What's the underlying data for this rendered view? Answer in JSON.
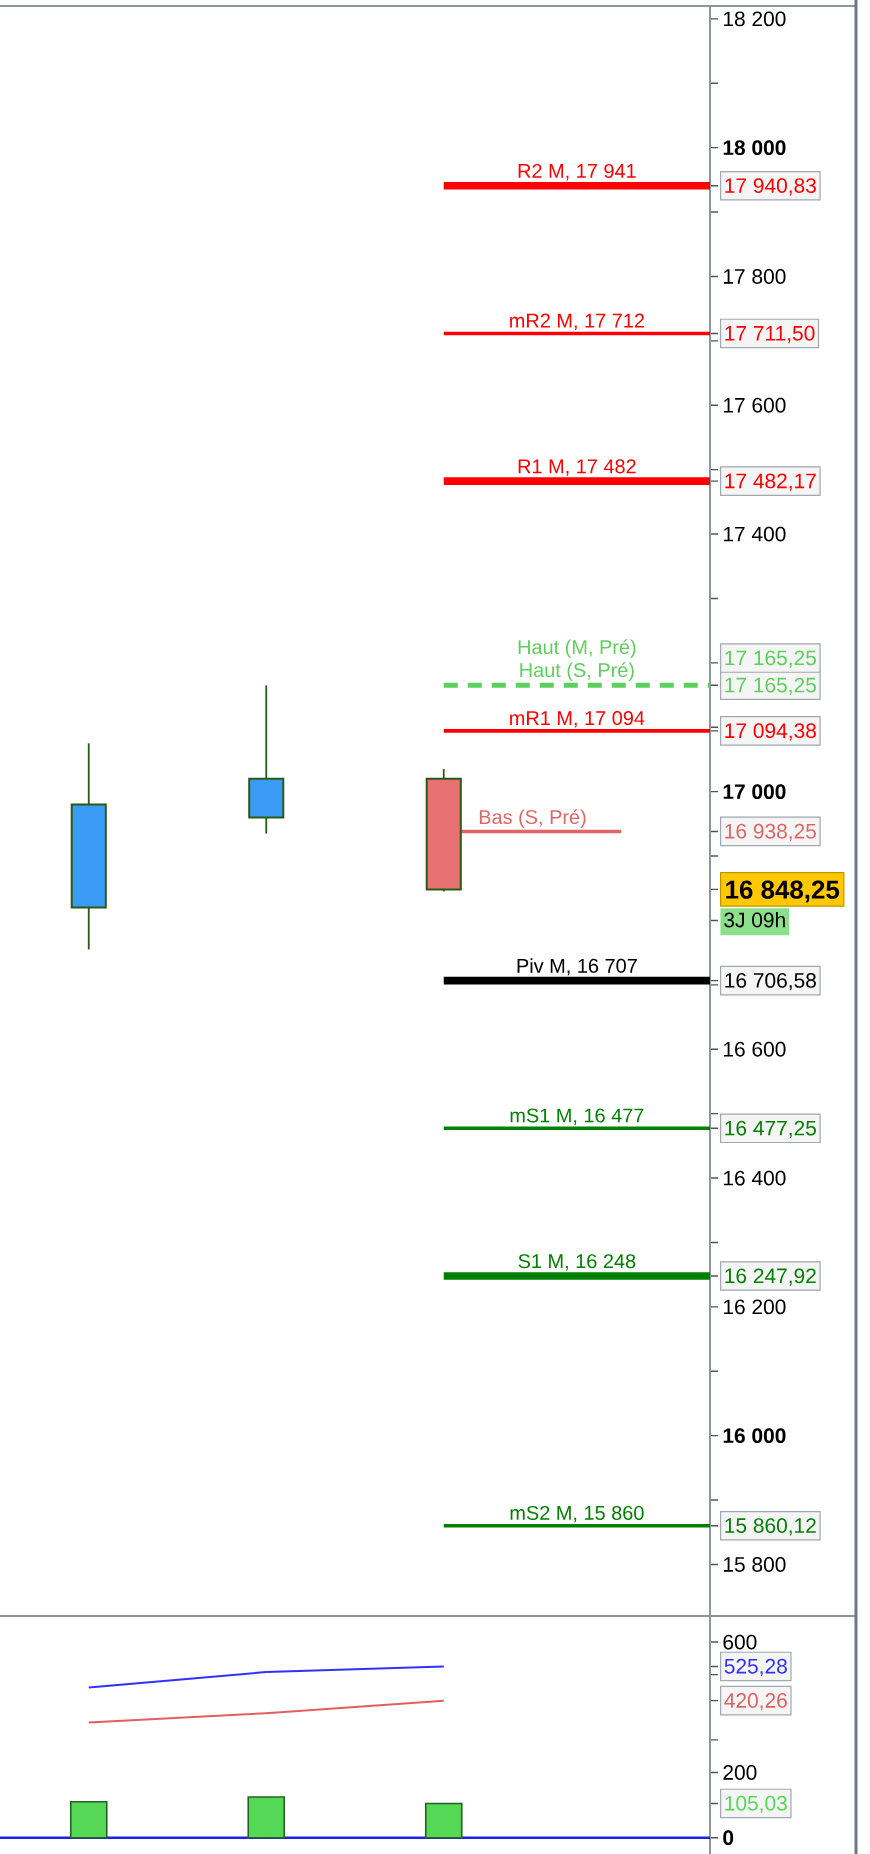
{
  "chart_data": [
    {
      "type": "candlestick",
      "categories": [
        null,
        null,
        null,
        null
      ],
      "ohlc": [
        [
          16820,
          17075,
          16755,
          16980
        ],
        [
          16960,
          17165,
          16935,
          17020
        ],
        [
          17020,
          17035,
          16845,
          16848.25
        ],
        null
      ],
      "colors": [
        "#3a9cf4",
        "#3a9cf4",
        "#e87272",
        null
      ],
      "ylim": [
        15720,
        18220
      ],
      "yticks": [
        {
          "value": 15800,
          "label": "15 800"
        },
        {
          "value": 15860.12,
          "label": "15 860,12"
        },
        {
          "value": 15900,
          "label": null
        },
        {
          "value": 16000,
          "label": "16 000"
        },
        {
          "value": 16100,
          "label": null
        },
        {
          "value": 16200,
          "label": "16 200"
        },
        {
          "value": 16247.92,
          "label": "16 247,92"
        },
        {
          "value": 16300,
          "label": null
        },
        {
          "value": 16400,
          "label": "16 400"
        },
        {
          "value": 16477.25,
          "label": "16 477,25"
        },
        {
          "value": 16500,
          "label": null
        },
        {
          "value": 16600,
          "label": "16 600"
        },
        {
          "value": 16700,
          "label": null
        },
        {
          "value": 16706.58,
          "label": "16 706,58"
        },
        {
          "value": 16800,
          "label": null
        },
        {
          "value": 16848.25,
          "label": "16 848,25"
        },
        {
          "value": 16900,
          "label": null
        },
        {
          "value": 16938.25,
          "label": "16 938,25"
        },
        {
          "value": 17000,
          "label": "17 000"
        },
        {
          "value": 17094.38,
          "label": "17 094,38"
        },
        {
          "value": 17100,
          "label": null
        },
        {
          "value": 17165.25,
          "label": "17 165,25"
        },
        {
          "value": 17200,
          "label": null
        },
        {
          "value": 17300,
          "label": null
        },
        {
          "value": 17400,
          "label": "17 400"
        },
        {
          "value": 17482.17,
          "label": "17 482,17"
        },
        {
          "value": 17500,
          "label": null
        },
        {
          "value": 17600,
          "label": "17 600"
        },
        {
          "value": 17700,
          "label": null
        },
        {
          "value": 17711.5,
          "label": "17 711,50"
        },
        {
          "value": 17800,
          "label": "17 800"
        },
        {
          "value": 17900,
          "label": null
        },
        {
          "value": 17940.83,
          "label": "17 940,83"
        },
        {
          "value": 18000,
          "label": "18 000"
        },
        {
          "value": 18100,
          "label": null
        },
        {
          "value": 18200,
          "label": "18 200"
        }
      ],
      "ref_lines": [
        {
          "axis": "y",
          "value": 17940.83,
          "label": "R2 M, 17 941",
          "color": "#ff0000"
        },
        {
          "axis": "y",
          "value": 17711.5,
          "label": "mR2 M, 17 712",
          "color": "#ff0000"
        },
        {
          "axis": "y",
          "value": 17482.17,
          "label": "R1 M, 17 482",
          "color": "#ff0000"
        },
        {
          "axis": "y",
          "value": 17165.25,
          "label": "Haut (S, Pré)",
          "color": "#5ccf5c",
          "line_style": "dashed"
        },
        {
          "axis": "y",
          "value": 17094.38,
          "label": "mR1 M, 17 094",
          "color": "#ff0000"
        },
        {
          "axis": "y",
          "value": 16938.25,
          "label": "Bas (S, Pré)",
          "color": "#e06666"
        },
        {
          "axis": "y",
          "value": 16706.58,
          "label": "Piv M, 16 707",
          "color": "#000000"
        },
        {
          "axis": "y",
          "value": 16477.25,
          "label": "mS1 M, 16 477",
          "color": "#008000"
        },
        {
          "axis": "y",
          "value": 16247.92,
          "label": "S1 M, 16 248",
          "color": "#008000"
        },
        {
          "axis": "y",
          "value": 15860.12,
          "label": "mS2 M, 15 860",
          "color": "#008000"
        }
      ],
      "annotations": [
        {
          "text": "Haut (M, Pré)",
          "y": 17165.25
        },
        "17 165,25",
        "3J 09h"
      ],
      "tick_labels": "y"
    },
    {
      "type": "bar",
      "categories": [
        null,
        null,
        null,
        null
      ],
      "series": [
        {
          "type": "bar",
          "color": "#55d855",
          "values": [
            110,
            125,
            105.03,
            null
          ]
        },
        {
          "type": "line",
          "color": "#3030ff",
          "values": [
            461,
            508,
            525.28,
            null
          ]
        },
        {
          "type": "line",
          "color": "#e06060",
          "values": [
            353,
            382,
            420.26,
            null
          ]
        }
      ],
      "ylim": [
        -50,
        680
      ],
      "yticks": [
        0,
        {
          "value": 105.03,
          "label": "105,03"
        },
        200,
        {
          "value": 300,
          "label": null
        },
        {
          "value": 420.26,
          "label": "420,26"
        },
        {
          "value": 500,
          "label": null
        },
        {
          "value": 525.28,
          "label": "525,28"
        },
        600
      ],
      "ref_lines": [
        {
          "axis": "y",
          "value": 0,
          "color": "#2020e0"
        }
      ],
      "tick_labels": "y"
    }
  ]
}
